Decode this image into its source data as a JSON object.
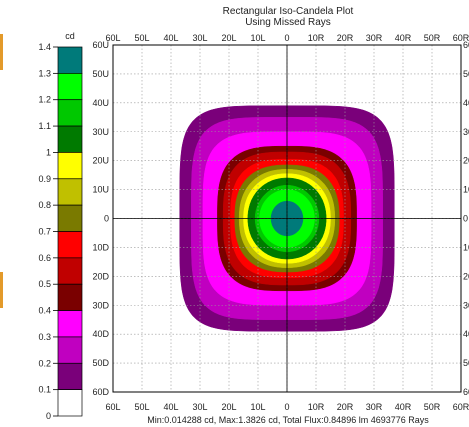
{
  "chart_data": {
    "type": "heatmap",
    "title": "Rectangular Iso-Candela Plot",
    "subtitle": "Using Missed Rays",
    "footer": "Min:0.014288 cd, Max:1.3826 cd, Total Flux:0.84896 lm 4693776 Rays",
    "x_ticks_top": [
      "60L",
      "50L",
      "40L",
      "30L",
      "20L",
      "10L",
      "0",
      "10R",
      "20R",
      "30R",
      "40R",
      "50R",
      "60R"
    ],
    "x_ticks_bottom": [
      "60L",
      "50L",
      "40L",
      "30L",
      "20L",
      "10L",
      "0",
      "10R",
      "20R",
      "30R",
      "40R",
      "50R",
      "60R"
    ],
    "y_ticks": [
      "60U",
      "50U",
      "40U",
      "30U",
      "20U",
      "10U",
      "0",
      "10D",
      "20D",
      "30D",
      "40D",
      "50D",
      "60D"
    ],
    "y_ticks_right": [
      "60U",
      "50U",
      "40U",
      "30U",
      "20U",
      "10U",
      "0",
      "10D",
      "20D",
      "30D",
      "40D",
      "50D",
      "60D"
    ],
    "x_range": [
      -60,
      60
    ],
    "y_range": [
      -60,
      60
    ],
    "grid": true,
    "legend": {
      "placement": "left",
      "unit": "cd",
      "ticks": [
        "1.4",
        "1.3",
        "1.2",
        "1.1",
        "1",
        "0.9",
        "0.8",
        "0.7",
        "0.6",
        "0.5",
        "0.4",
        "0.3",
        "0.2",
        "0.1",
        "0"
      ],
      "bands": [
        {
          "min": 1.3,
          "max": 1.4,
          "color": "#007a7a"
        },
        {
          "min": 1.2,
          "max": 1.3,
          "color": "#00ff00"
        },
        {
          "min": 1.1,
          "max": 1.2,
          "color": "#00c800"
        },
        {
          "min": 1.0,
          "max": 1.1,
          "color": "#007a00"
        },
        {
          "min": 0.9,
          "max": 1.0,
          "color": "#ffff00"
        },
        {
          "min": 0.8,
          "max": 0.9,
          "color": "#c0c000"
        },
        {
          "min": 0.7,
          "max": 0.8,
          "color": "#7a7a00"
        },
        {
          "min": 0.6,
          "max": 0.7,
          "color": "#ff0000"
        },
        {
          "min": 0.5,
          "max": 0.6,
          "color": "#c00000"
        },
        {
          "min": 0.4,
          "max": 0.5,
          "color": "#7a0000"
        },
        {
          "min": 0.3,
          "max": 0.4,
          "color": "#ff00ff"
        },
        {
          "min": 0.2,
          "max": 0.3,
          "color": "#c000c0"
        },
        {
          "min": 0.1,
          "max": 0.2,
          "color": "#7a007a"
        },
        {
          "min": 0.0,
          "max": 0.1,
          "color": "#ffffff"
        }
      ]
    },
    "contours": [
      {
        "level": 0.1,
        "color": "#7a007a",
        "half_width_deg": 37,
        "half_height_deg": 39,
        "exponent": 5
      },
      {
        "level": 0.2,
        "color": "#c000c0",
        "half_width_deg": 33,
        "half_height_deg": 35,
        "exponent": 4.5
      },
      {
        "level": 0.3,
        "color": "#ff00ff",
        "half_width_deg": 29,
        "half_height_deg": 30,
        "exponent": 4
      },
      {
        "level": 0.4,
        "color": "#7a0000",
        "half_width_deg": 24,
        "half_height_deg": 25,
        "exponent": 3.2
      },
      {
        "level": 0.5,
        "color": "#c00000",
        "half_width_deg": 22,
        "half_height_deg": 23,
        "exponent": 3
      },
      {
        "level": 0.6,
        "color": "#ff0000",
        "half_width_deg": 19.5,
        "half_height_deg": 20.5,
        "exponent": 2.8
      },
      {
        "level": 0.7,
        "color": "#7a7a00",
        "half_width_deg": 18,
        "half_height_deg": 18.5,
        "exponent": 2.5
      },
      {
        "level": 0.8,
        "color": "#c0c000",
        "half_width_deg": 16.5,
        "half_height_deg": 17,
        "exponent": 2.3
      },
      {
        "level": 0.9,
        "color": "#ffff00",
        "half_width_deg": 15,
        "half_height_deg": 15.5,
        "exponent": 2.2
      },
      {
        "level": 1.0,
        "color": "#007a00",
        "half_width_deg": 13.5,
        "half_height_deg": 14,
        "exponent": 2.1
      },
      {
        "level": 1.1,
        "color": "#00c800",
        "half_width_deg": 11,
        "half_height_deg": 11.5,
        "exponent": 2
      },
      {
        "level": 1.2,
        "color": "#00ff00",
        "half_width_deg": 9.5,
        "half_height_deg": 10,
        "exponent": 2
      },
      {
        "level": 1.3,
        "color": "#007a7a",
        "half_width_deg": 5.5,
        "half_height_deg": 6,
        "exponent": 2
      }
    ]
  }
}
